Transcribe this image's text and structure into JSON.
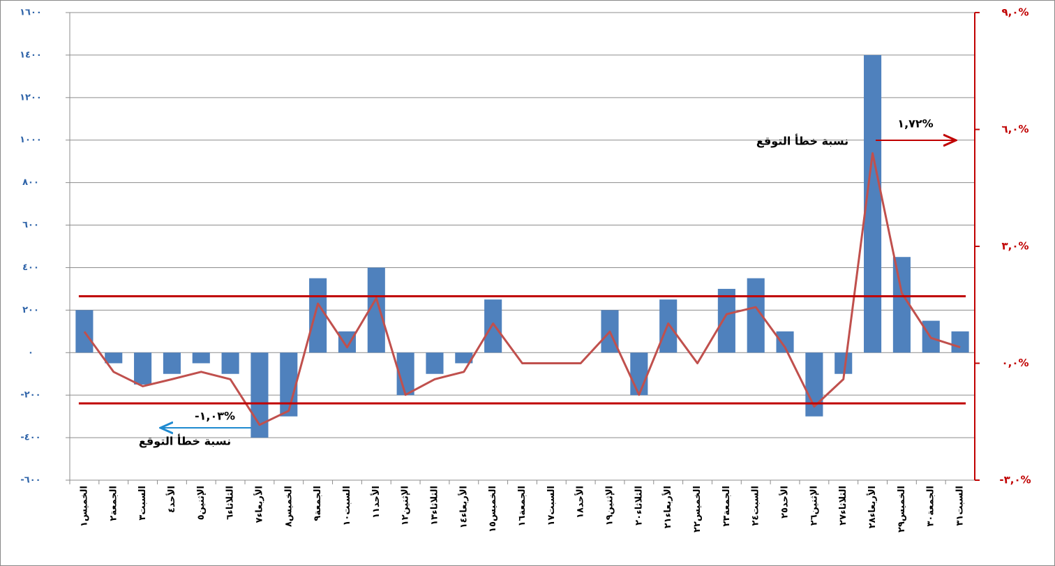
{
  "chart_data": {
    "type": "combo",
    "categories": [
      "الخميس١",
      "الجمعة٢",
      "السبت٣",
      "الأحد٤",
      "الإثنين٥",
      "الثلاثاء٦",
      "الأربعاء٧",
      "الخميس٨",
      "الجمعة٩",
      "السبت١٠",
      "الأحد١١",
      "الإثنين١٢",
      "الثلاثاء١٣",
      "الأربعاء١٤",
      "الخميس١٥",
      "الجمعة١٦",
      "السبت١٧",
      "الأحد١٨",
      "الإثنين١٩",
      "الثلاثاء٢٠",
      "الأربعاء٢١",
      "الخميس٢٢",
      "الجمعة٢٣",
      "السبت٢٤",
      "الأحد٢٥",
      "الإثنين٢٦",
      "الثلاثاء٢٧",
      "الأربعاء٢٨",
      "الخميس٢٩",
      "الجمعة٣٠",
      "السبت٣١"
    ],
    "series": [
      {
        "type": "bar",
        "color": "#4f81bd",
        "values": [
          200,
          -50,
          -150,
          -100,
          -50,
          -100,
          -400,
          -300,
          350,
          100,
          400,
          -200,
          -100,
          -50,
          250,
          0,
          0,
          0,
          200,
          -200,
          250,
          0,
          300,
          350,
          100,
          -300,
          -100,
          1400,
          450,
          150,
          100
        ]
      },
      {
        "type": "line",
        "axis": "y2",
        "color": "#c0504d",
        "values": [
          0.81,
          -0.22,
          -0.59,
          -0.41,
          -0.22,
          -0.41,
          -1.58,
          -1.22,
          1.53,
          0.41,
          1.67,
          -0.81,
          -0.41,
          -0.22,
          1.02,
          0,
          0,
          0,
          0.81,
          -0.81,
          1.02,
          0,
          1.26,
          1.44,
          0.41,
          -1.11,
          -0.41,
          5.39,
          1.8,
          0.65,
          0.41
        ]
      }
    ],
    "ylim": [
      -600,
      1600
    ],
    "yticks": [
      {
        "value": -600,
        "label": "-٦٠٠"
      },
      {
        "value": -400,
        "label": "-٤٠٠"
      },
      {
        "value": -200,
        "label": "-٢٠٠"
      },
      {
        "value": 0,
        "label": "٠"
      },
      {
        "value": 200,
        "label": "٢٠٠"
      },
      {
        "value": 400,
        "label": "٤٠٠"
      },
      {
        "value": 600,
        "label": "٦٠٠"
      },
      {
        "value": 800,
        "label": "٨٠٠"
      },
      {
        "value": 1000,
        "label": "١٠٠٠"
      },
      {
        "value": 1200,
        "label": "١٢٠٠"
      },
      {
        "value": 1400,
        "label": "١٤٠٠"
      },
      {
        "value": 1600,
        "label": "١٦٠٠"
      }
    ],
    "y2lim": [
      -3,
      9
    ],
    "y2ticks": [
      {
        "value": -3,
        "label": "-٣,٠%"
      },
      {
        "value": 0,
        "label": "٠,٠%"
      },
      {
        "value": 3,
        "label": "٣,٠%"
      },
      {
        "value": 6,
        "label": "٦,٠%"
      },
      {
        "value": 9,
        "label": "٩,٠%"
      }
    ],
    "grid": true,
    "reference_lines": [
      {
        "axis": "y2",
        "color": "#c00000",
        "value": 1.72,
        "label": "١,٧٢%",
        "note": "نسبة خطأ التوقع"
      },
      {
        "axis": "y2",
        "color": "#c00000",
        "value": -1.03,
        "label": "-١,٠٣%",
        "note": "نسبة خطأ التوقع"
      }
    ]
  }
}
